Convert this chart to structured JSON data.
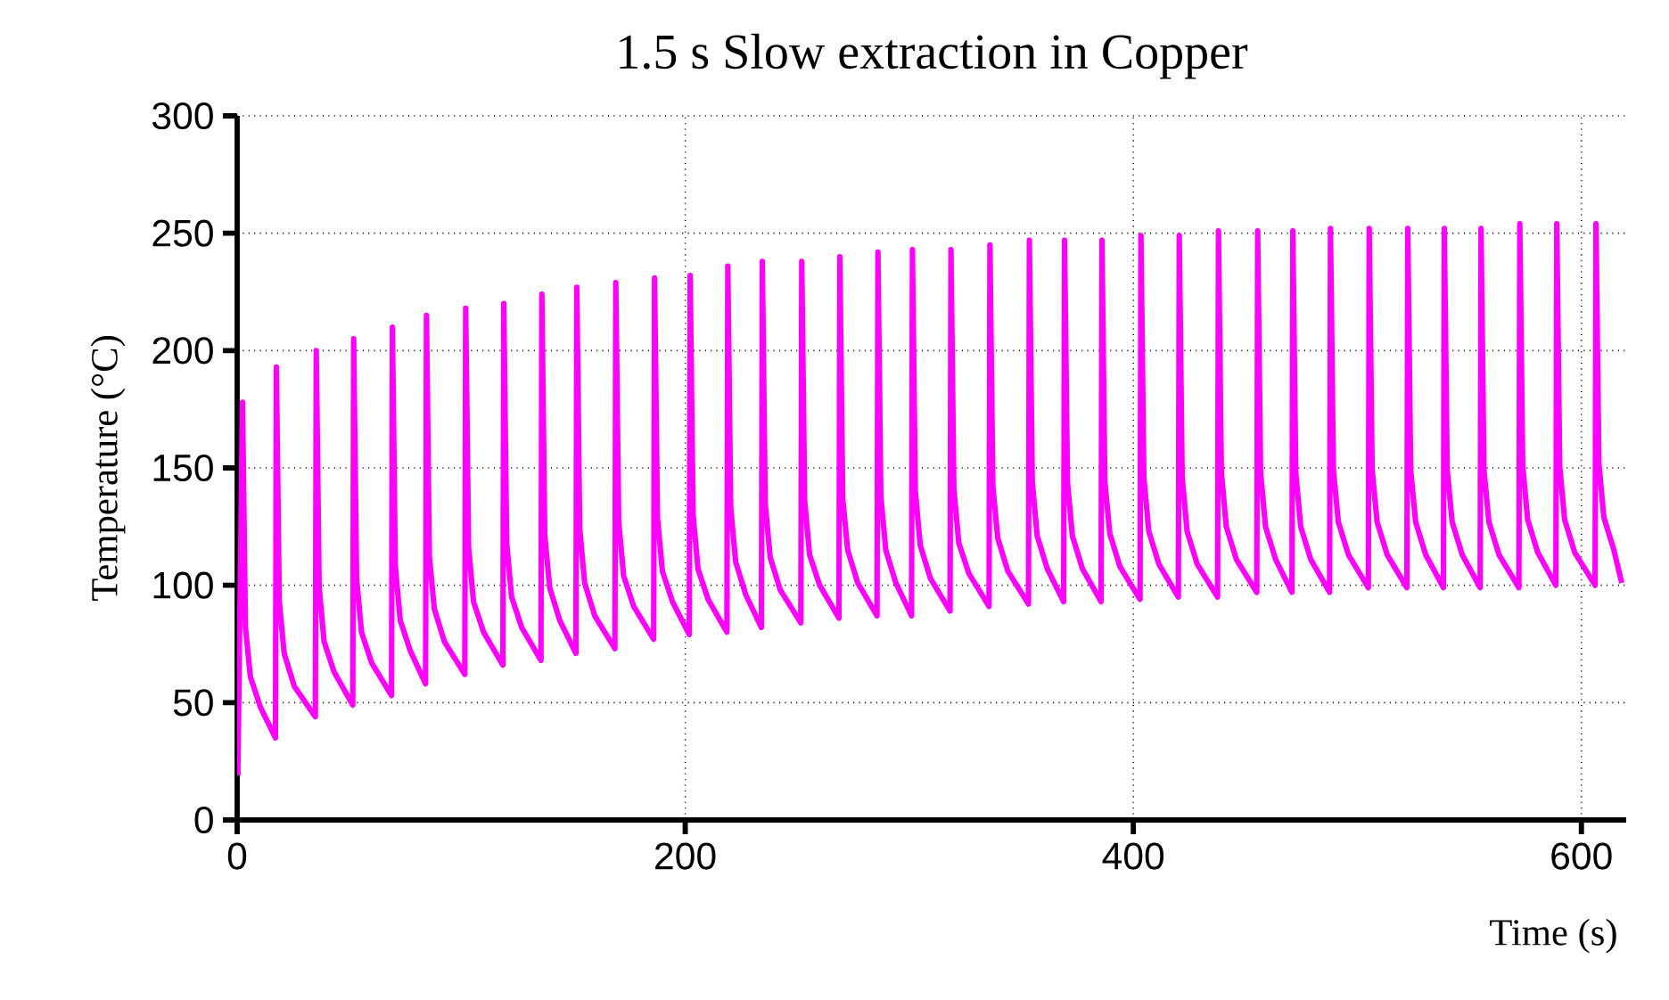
{
  "chart_data": {
    "type": "line",
    "title": "1.5 s Slow extraction in Copper",
    "xlabel": "Time (s)",
    "ylabel": "Temperature (°C)",
    "xlim": [
      0,
      620
    ],
    "ylim": [
      0,
      300
    ],
    "xticks": [
      0,
      200,
      400,
      600
    ],
    "yticks": [
      0,
      50,
      100,
      150,
      200,
      250,
      300
    ],
    "grid": true,
    "series": [
      {
        "color": "#ff00ff",
        "x": [
          0.3,
          2.4,
          3.7,
          5.9,
          10.4,
          17.1,
          17.5,
          18.8,
          21,
          25.5,
          34.9,
          35.3,
          36.6,
          38.8,
          43.3,
          51.6,
          52,
          53.3,
          55.5,
          60,
          68.9,
          69.3,
          70.6,
          72.8,
          77.3,
          84.1,
          84.5,
          85.8,
          88,
          92.5,
          101.6,
          102,
          103.3,
          105.5,
          110,
          118.6,
          119,
          120.3,
          122.5,
          127,
          135.6,
          136,
          137.3,
          139.5,
          144,
          151.2,
          151.6,
          152.9,
          155.1,
          159.6,
          168.6,
          169,
          170.3,
          172.5,
          177,
          185.9,
          186.3,
          187.6,
          189.8,
          194.3,
          201.8,
          202.2,
          203.5,
          205.7,
          210.2,
          218.6,
          219,
          220.3,
          222.5,
          227,
          234,
          234.4,
          235.7,
          237.9,
          242.4,
          251.6,
          252,
          253.3,
          255.5,
          260,
          268.6,
          269,
          270.3,
          272.5,
          277,
          285.6,
          286,
          287.3,
          289.5,
          294,
          301,
          301.4,
          302.7,
          304.9,
          309.4,
          318.2,
          318.6,
          319.9,
          322.1,
          326.6,
          335.6,
          336,
          337.3,
          339.5,
          344,
          353.2,
          353.6,
          354.9,
          357.1,
          361.6,
          368.9,
          369.3,
          370.6,
          372.8,
          377.3,
          385.6,
          386,
          387.3,
          389.5,
          394,
          403,
          403.4,
          404.7,
          406.9,
          411.4,
          420.1,
          420.5,
          421.8,
          424,
          428.5,
          437.6,
          438,
          439.3,
          441.5,
          446,
          455.1,
          455.5,
          456.8,
          459,
          463.5,
          470.8,
          471.2,
          472.5,
          474.7,
          479.2,
          487.6,
          488,
          489.3,
          491.5,
          496,
          504.9,
          505.3,
          506.6,
          508.8,
          513.3,
          522.1,
          522.5,
          523.8,
          526,
          530.5,
          538.4,
          538.8,
          540.1,
          542.3,
          546.8,
          554.8,
          555.2,
          556.5,
          558.7,
          563.2,
          572.1,
          572.5,
          573.8,
          576,
          580.5,
          588.6,
          589,
          590.3,
          592.5,
          597,
          606.1,
          606.5,
          607.8,
          610,
          614.5,
          618
        ],
        "values": [
          19,
          178,
          82,
          61,
          48,
          35,
          193,
          93,
          71,
          57,
          44,
          200,
          99,
          76,
          63,
          49,
          205,
          103,
          80,
          67,
          53,
          210,
          108,
          85,
          72,
          58,
          215,
          112,
          90,
          76,
          62,
          218,
          116,
          93,
          80,
          66,
          220,
          118,
          95,
          82,
          68,
          224,
          121,
          99,
          85,
          71,
          227,
          124,
          101,
          87,
          73,
          229,
          127,
          104,
          91,
          77,
          231,
          129,
          106,
          93,
          79,
          232,
          130,
          107,
          94,
          80,
          236,
          133,
          110,
          96,
          82,
          238,
          135,
          112,
          98,
          84,
          238,
          136,
          113,
          100,
          86,
          240,
          137,
          115,
          101,
          87,
          242,
          138,
          115,
          101,
          87,
          243,
          140,
          117,
          103,
          89,
          243,
          141,
          118,
          105,
          91,
          245,
          142,
          120,
          106,
          92,
          247,
          144,
          121,
          107,
          93,
          247,
          144,
          121,
          107,
          93,
          247,
          144,
          122,
          108,
          94,
          249,
          146,
          123,
          109,
          95,
          249,
          146,
          123,
          109,
          95,
          251,
          148,
          125,
          111,
          97,
          251,
          148,
          125,
          111,
          97,
          251,
          148,
          125,
          111,
          97,
          252,
          149,
          127,
          113,
          99,
          252,
          149,
          127,
          113,
          99,
          252,
          149,
          127,
          113,
          99,
          252,
          149,
          127,
          113,
          99,
          252,
          149,
          127,
          113,
          99,
          254,
          151,
          128,
          114,
          100,
          254,
          151,
          128,
          114,
          100,
          254,
          152,
          129,
          115,
          101
        ]
      }
    ]
  }
}
